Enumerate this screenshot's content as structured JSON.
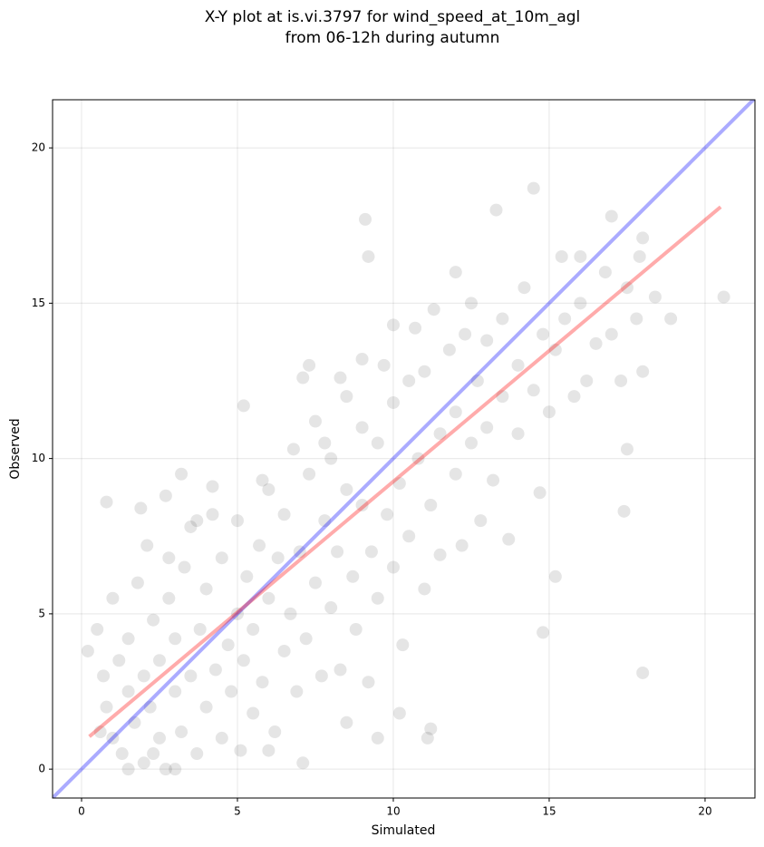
{
  "chart_data": {
    "type": "scatter",
    "title": [
      "X-Y plot at is.vi.3797 for wind_speed_at_10m_agl",
      "from 06-12h during autumn"
    ],
    "x_label": "Simulated",
    "y_label": "Observed",
    "xlim": [
      -0.93,
      21.6
    ],
    "ylim": [
      -0.93,
      21.55
    ],
    "xticks": [
      0,
      5,
      10,
      15,
      20
    ],
    "yticks": [
      0,
      5,
      10,
      15,
      20
    ],
    "grid": true,
    "points": {
      "color": "rgba(0,0,0,0.1)",
      "x": [
        0.2,
        0.5,
        0.7,
        0.8,
        1.0,
        1.0,
        1.2,
        1.3,
        1.5,
        1.5,
        1.7,
        1.8,
        2.0,
        2.0,
        2.1,
        2.2,
        2.3,
        2.5,
        2.5,
        2.7,
        2.8,
        3.0,
        3.0,
        3.2,
        3.3,
        3.5,
        3.5,
        3.7,
        3.8,
        4.0,
        4.0,
        4.2,
        4.3,
        4.5,
        4.5,
        4.7,
        4.8,
        5.0,
        5.0,
        5.1,
        5.2,
        5.3,
        5.5,
        5.5,
        5.7,
        5.8,
        6.0,
        6.0,
        6.2,
        6.3,
        6.5,
        6.5,
        6.7,
        6.8,
        6.9,
        7.0,
        7.2,
        7.3,
        7.5,
        7.5,
        7.7,
        7.8,
        8.0,
        8.0,
        8.2,
        8.3,
        8.5,
        8.5,
        8.7,
        8.8,
        9.0,
        9.0,
        9.2,
        9.3,
        9.5,
        9.5,
        9.7,
        9.8,
        10.0,
        10.0,
        10.2,
        10.3,
        10.5,
        10.5,
        10.7,
        10.8,
        11.0,
        11.0,
        11.2,
        11.3,
        11.5,
        11.5,
        11.8,
        12.0,
        12.0,
        12.2,
        12.3,
        12.5,
        12.7,
        12.8,
        13.0,
        13.0,
        13.2,
        13.5,
        13.5,
        13.7,
        14.0,
        14.0,
        14.2,
        14.5,
        14.7,
        14.8,
        15.0,
        15.2,
        15.5,
        15.8,
        16.0,
        16.2,
        16.5,
        16.8,
        17.0,
        17.3,
        17.5,
        17.8,
        18.0,
        1.5,
        2.3,
        3.0,
        6.0,
        8.5,
        9.5,
        0.6,
        4.2,
        3.7,
        2.8,
        1.9,
        5.8,
        7.8,
        8.3,
        9.0,
        10.0,
        12.0,
        12.5,
        0.8,
        9.1,
        9.2,
        13.3,
        14.5,
        17.0,
        20.6,
        18.0,
        14.8,
        17.4,
        17.5,
        15.2,
        11.2,
        11.1,
        10.2,
        7.1,
        2.7,
        3.2,
        5.2,
        7.3,
        7.1,
        18.4,
        18.9,
        18.0,
        17.9,
        16.0,
        15.4
      ],
      "y": [
        3.8,
        4.5,
        3.0,
        2.0,
        1.0,
        5.5,
        3.5,
        0.5,
        2.5,
        4.2,
        1.5,
        6.0,
        0.2,
        3.0,
        7.2,
        2.0,
        4.8,
        1.0,
        3.5,
        0.0,
        5.5,
        2.5,
        4.2,
        1.2,
        6.5,
        3.0,
        7.8,
        0.5,
        4.5,
        2.0,
        5.8,
        8.2,
        3.2,
        1.0,
        6.8,
        4.0,
        2.5,
        5.0,
        8.0,
        0.6,
        3.5,
        6.2,
        1.8,
        4.5,
        7.2,
        2.8,
        5.5,
        9.0,
        1.2,
        6.8,
        3.8,
        8.2,
        5.0,
        10.3,
        2.5,
        7.0,
        4.2,
        9.5,
        6.0,
        11.2,
        3.0,
        8.0,
        5.2,
        10.0,
        7.0,
        3.2,
        9.0,
        12.0,
        6.2,
        4.5,
        8.5,
        11.0,
        2.8,
        7.0,
        10.5,
        5.5,
        13.0,
        8.2,
        6.5,
        11.8,
        9.2,
        4.0,
        12.5,
        7.5,
        14.2,
        10.0,
        5.8,
        12.8,
        8.5,
        14.8,
        10.8,
        6.9,
        13.5,
        9.5,
        11.5,
        7.2,
        14.0,
        10.5,
        12.5,
        8.0,
        13.8,
        11.0,
        9.3,
        14.5,
        12.0,
        7.4,
        10.8,
        13.0,
        15.5,
        12.2,
        8.9,
        14.0,
        11.5,
        13.5,
        14.5,
        12.0,
        15.0,
        12.5,
        13.7,
        16.0,
        14.0,
        12.5,
        15.5,
        14.5,
        12.8,
        0.0,
        0.5,
        0.0,
        0.6,
        1.5,
        1.0,
        1.2,
        9.1,
        8.0,
        6.8,
        8.4,
        9.3,
        10.5,
        12.6,
        13.2,
        14.3,
        16.0,
        15.0,
        8.6,
        17.7,
        16.5,
        18.0,
        18.7,
        17.8,
        15.2,
        3.1,
        4.4,
        8.3,
        10.3,
        6.2,
        1.3,
        1.0,
        1.8,
        0.2,
        8.8,
        9.5,
        11.7,
        13.0,
        12.6,
        15.2,
        14.5,
        17.1,
        16.5,
        16.5,
        16.5
      ]
    },
    "lines": [
      {
        "color": "rgba(0,0,255,0.33)",
        "x": [
          -0.93,
          21.6
        ],
        "y": [
          -0.93,
          21.6
        ]
      },
      {
        "color": "rgba(255,0,0,0.33)",
        "x": [
          0.25,
          20.5
        ],
        "y": [
          1.05,
          18.1
        ]
      }
    ]
  }
}
